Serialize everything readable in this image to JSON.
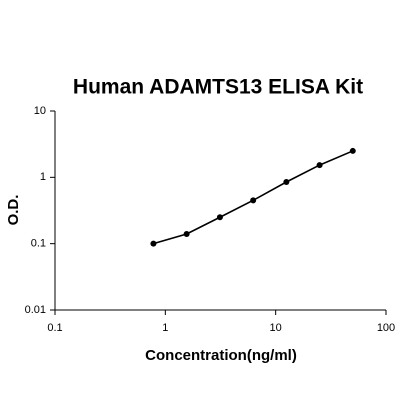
{
  "chart_data": {
    "type": "scatter",
    "title": "Human ADAMTS13 ELISA Kit",
    "x_label": "Concentration(ng/ml)",
    "y_label": "O.D.",
    "x": [
      0.78,
      1.56,
      3.125,
      6.25,
      12.5,
      25,
      50
    ],
    "series": [
      {
        "values": [
          0.1,
          0.14,
          0.25,
          0.45,
          0.85,
          1.53,
          2.5
        ],
        "color": "#000000"
      }
    ],
    "xlim": [
      0.1,
      100
    ],
    "ylim": [
      0.01,
      10
    ],
    "xticks": [
      0.1,
      1,
      10,
      100
    ],
    "yticks": [
      0.01,
      0.1,
      1,
      10
    ],
    "x_log": true,
    "y_log": true,
    "connect": true
  }
}
